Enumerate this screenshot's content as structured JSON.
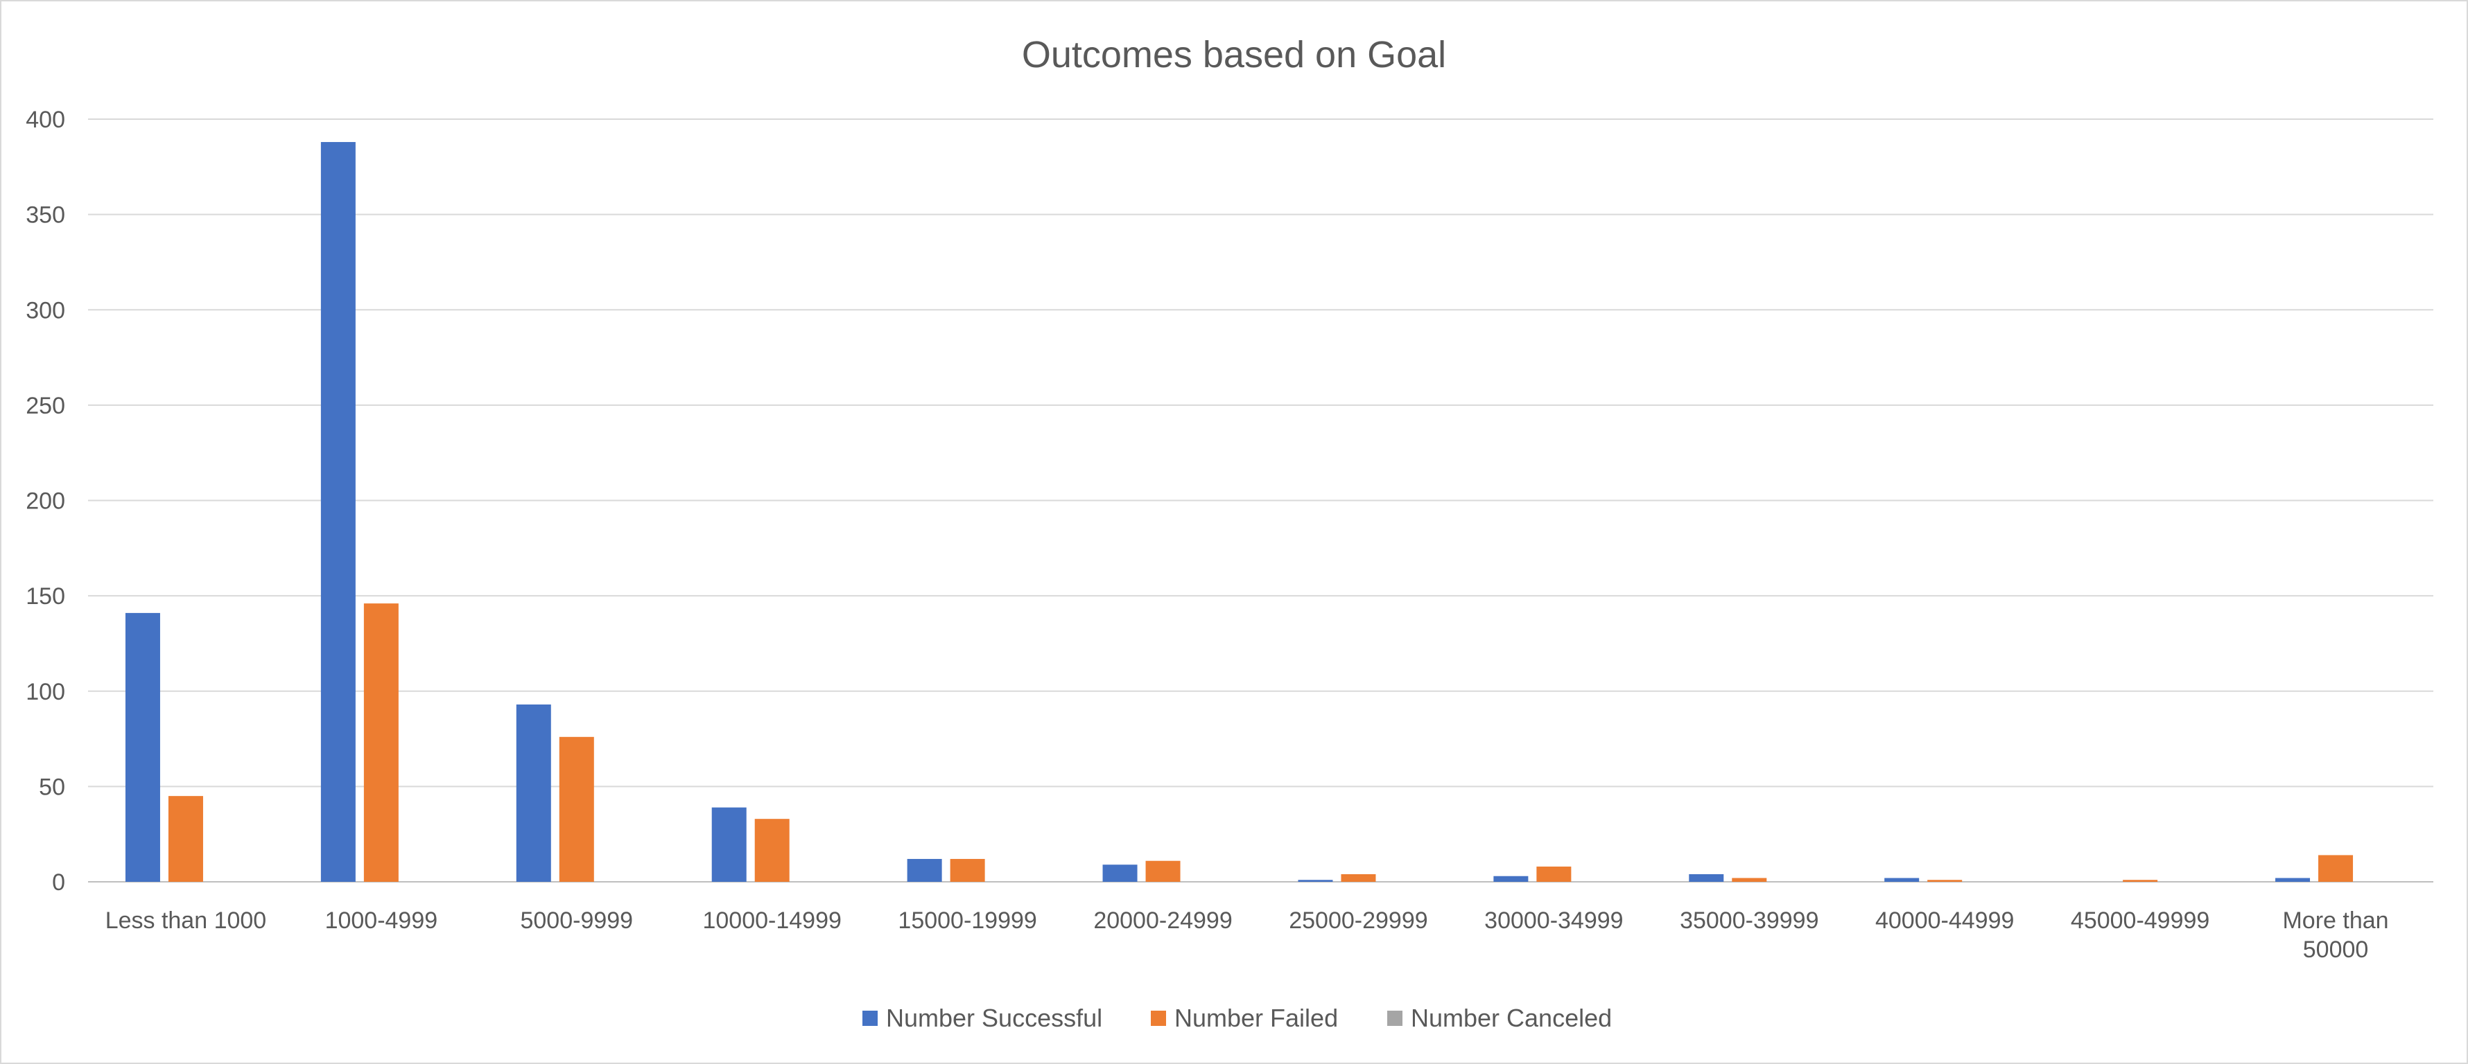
{
  "chart_data": {
    "type": "bar",
    "title": "Outcomes based on Goal",
    "xlabel": "",
    "ylabel": "",
    "ylim": [
      0,
      400
    ],
    "yticks": [
      0,
      50,
      100,
      150,
      200,
      250,
      300,
      350,
      400
    ],
    "grid": true,
    "legend_position": "bottom",
    "categories": [
      [
        "Less than 1000"
      ],
      [
        "1000-4999"
      ],
      [
        "5000-9999"
      ],
      [
        "10000-14999"
      ],
      [
        "15000-19999"
      ],
      [
        "20000-24999"
      ],
      [
        "25000-29999"
      ],
      [
        "30000-34999"
      ],
      [
        "35000-39999"
      ],
      [
        "40000-44999"
      ],
      [
        "45000-49999"
      ],
      [
        "More than",
        "50000"
      ]
    ],
    "series": [
      {
        "name": "Number Successful",
        "color": "#4472C4",
        "values": [
          141,
          388,
          93,
          39,
          12,
          9,
          1,
          3,
          4,
          2,
          0,
          2
        ]
      },
      {
        "name": "Number Failed",
        "color": "#ED7D31",
        "values": [
          45,
          146,
          76,
          33,
          12,
          11,
          4,
          8,
          2,
          1,
          1,
          14
        ]
      },
      {
        "name": "Number Canceled",
        "color": "#A5A5A5",
        "values": [
          0,
          0,
          0,
          0,
          0,
          0,
          0,
          0,
          0,
          0,
          0,
          0
        ]
      }
    ]
  },
  "colors": {
    "gridline": "#d9d9d9",
    "axis": "#bfbfbf",
    "text": "#595959"
  }
}
